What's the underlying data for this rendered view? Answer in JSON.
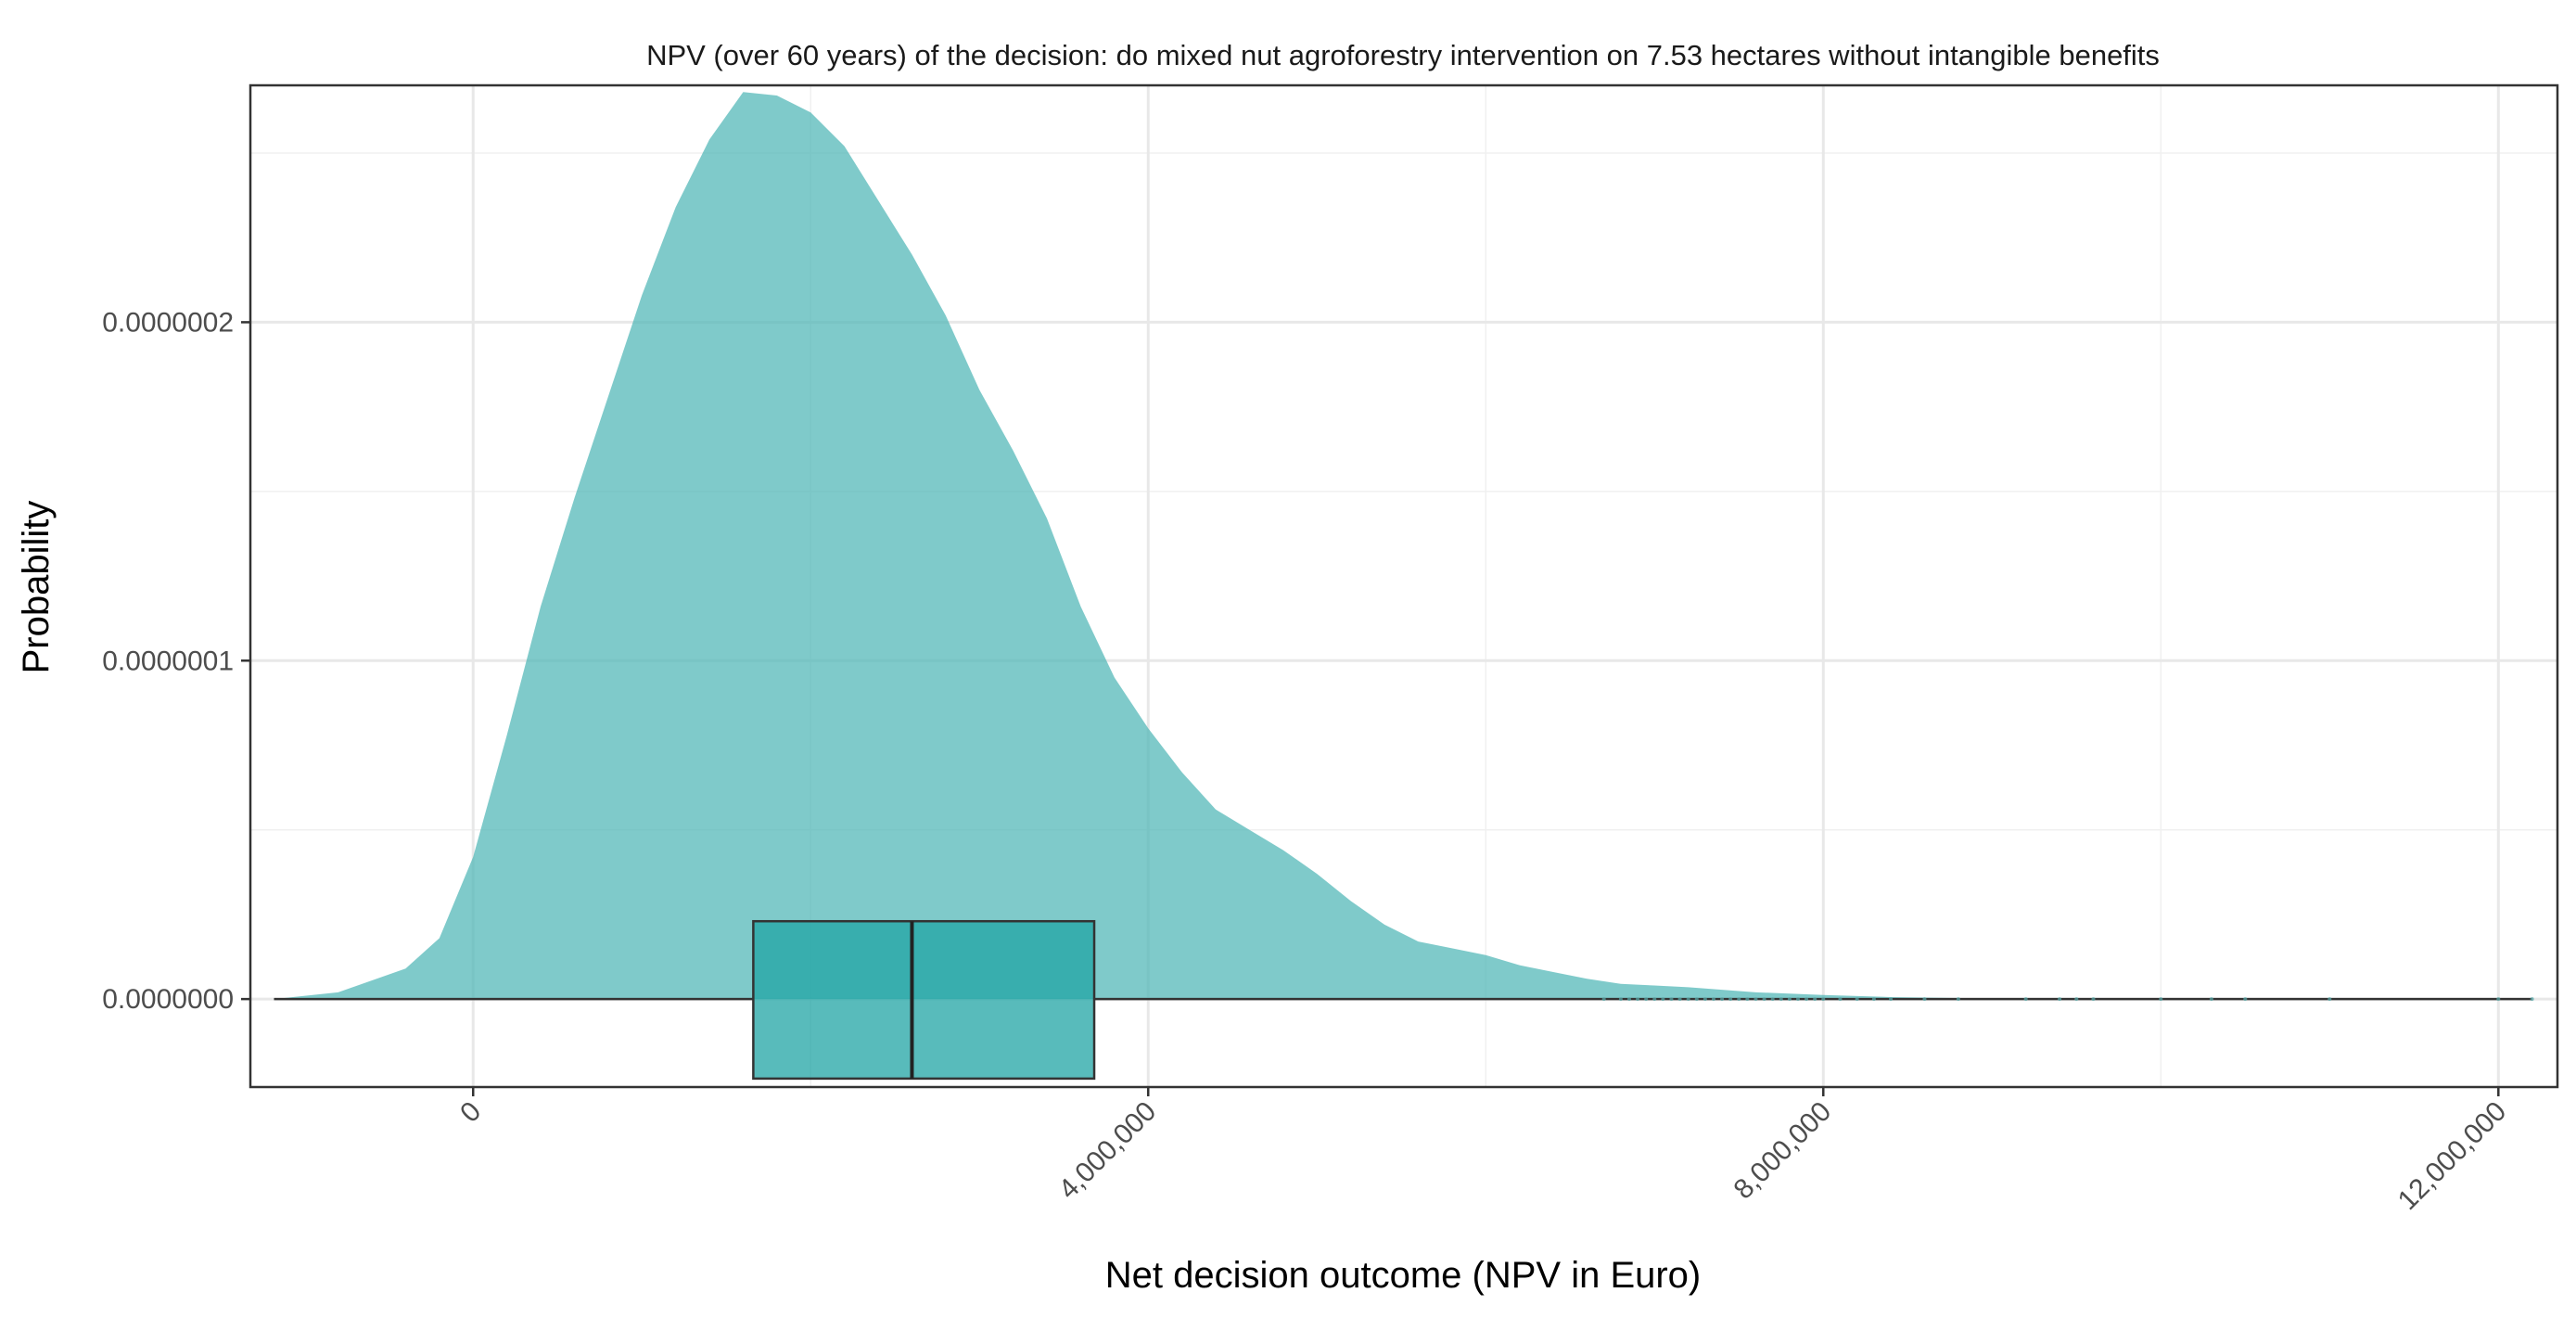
{
  "chart_data": {
    "type": "density",
    "title": "NPV (over 60 years) of the decision: do mixed nut agroforestry intervention on 7.53 hectares without intangible benefits",
    "xlabel": "Net decision outcome (NPV in Euro)",
    "ylabel": "Probability",
    "xlim": [
      -1320000,
      12350000
    ],
    "ylim": [
      -2.6e-08,
      2.7e-07
    ],
    "x_ticks": [
      {
        "value": 0,
        "label": "0"
      },
      {
        "value": 4000000,
        "label": "4,000,000"
      },
      {
        "value": 8000000,
        "label": "8,000,000"
      },
      {
        "value": 12000000,
        "label": "12,000,000"
      }
    ],
    "y_ticks": [
      {
        "value": 0,
        "label": "0.0000000"
      },
      {
        "value": 1e-07,
        "label": "0.0000001"
      },
      {
        "value": 2e-07,
        "label": "0.0000002"
      }
    ],
    "grid": true,
    "fill_color": "#4DB6B6",
    "fill_opacity": 0.72,
    "density_curve": {
      "x": [
        -1180000,
        -800000,
        -400000,
        -200000,
        0,
        200000,
        400000,
        600000,
        800000,
        1000000,
        1200000,
        1400000,
        1600000,
        1800000,
        2000000,
        2200000,
        2400000,
        2600000,
        2800000,
        3000000,
        3200000,
        3400000,
        3600000,
        3800000,
        4000000,
        4200000,
        4400000,
        4600000,
        4800000,
        5000000,
        5200000,
        5400000,
        5600000,
        5800000,
        6000000,
        6200000,
        6400000,
        6600000,
        6800000,
        7000000,
        7200000,
        7600000,
        8000000,
        8400000,
        8800000,
        9200000,
        9600000,
        10000000,
        10500000,
        11000000,
        11500000,
        12000000,
        12200000
      ],
      "y": [
        0.0,
        2e-09,
        9e-09,
        1.8e-08,
        4.2e-08,
        7.8e-08,
        1.16e-07,
        1.48e-07,
        1.78e-07,
        2.08e-07,
        2.34e-07,
        2.54e-07,
        2.68e-07,
        2.67e-07,
        2.62e-07,
        2.52e-07,
        2.36e-07,
        2.2e-07,
        2.02e-07,
        1.8e-07,
        1.62e-07,
        1.42e-07,
        1.16e-07,
        9.5e-08,
        8e-08,
        6.7e-08,
        5.6e-08,
        5e-08,
        4.4e-08,
        3.7e-08,
        2.9e-08,
        2.2e-08,
        1.7e-08,
        1.5e-08,
        1.3e-08,
        1e-08,
        8e-09,
        6e-09,
        4.5e-09,
        4e-09,
        3.5e-09,
        2e-09,
        1.2e-09,
        6e-10,
        3e-10,
        2e-10,
        1e-10,
        0.0,
        0.0,
        0.0,
        0.0,
        0.0,
        0.0
      ]
    },
    "boxplot": {
      "q1": 1660000,
      "median": 2600000,
      "q3": 3680000,
      "whisker_low": -1180000,
      "whisker_high": 12200000,
      "box_fill": "#20A4A4",
      "box_opacity": 0.75,
      "outliers": [
        6700000,
        6800000,
        6850000,
        6900000,
        6950000,
        7000000,
        7050000,
        7100000,
        7150000,
        7200000,
        7250000,
        7300000,
        7350000,
        7400000,
        7450000,
        7500000,
        7550000,
        7600000,
        7650000,
        7700000,
        7750000,
        7800000,
        7850000,
        7900000,
        7950000,
        8000000,
        8100000,
        8200000,
        8300000,
        8400000,
        8600000,
        8800000,
        9200000,
        9400000,
        9500000,
        9600000,
        10000000,
        10300000,
        10500000,
        11000000,
        12000000,
        12200000
      ]
    }
  }
}
